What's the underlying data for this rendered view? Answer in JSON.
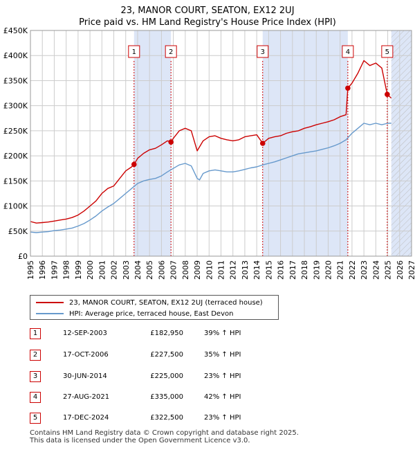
{
  "title_line1": "23, MANOR COURT, SEATON, EX12 2UJ",
  "title_line2": "Price paid vs. HM Land Registry's House Price Index (HPI)",
  "colors": {
    "property": "#cc0000",
    "hpi": "#6699cc",
    "shade": "#dde6f7",
    "grid": "#cccccc"
  },
  "legend": {
    "property_label": "23, MANOR COURT, SEATON, EX12 2UJ (terraced house)",
    "hpi_label": "HPI: Average price, terraced house, East Devon"
  },
  "sales": [
    {
      "num": "1",
      "date": "12-SEP-2003",
      "price": "£182,950",
      "hpi": "39% ↑ HPI"
    },
    {
      "num": "2",
      "date": "17-OCT-2006",
      "price": "£227,500",
      "hpi": "35% ↑ HPI"
    },
    {
      "num": "3",
      "date": "30-JUN-2014",
      "price": "£225,000",
      "hpi": "23% ↑ HPI"
    },
    {
      "num": "4",
      "date": "27-AUG-2021",
      "price": "£335,000",
      "hpi": "42% ↑ HPI"
    },
    {
      "num": "5",
      "date": "17-DEC-2024",
      "price": "£322,500",
      "hpi": "23% ↑ HPI"
    }
  ],
  "footer_line1": "Contains HM Land Registry data © Crown copyright and database right 2025.",
  "footer_line2": "This data is licensed under the Open Government Licence v3.0.",
  "chart_data": {
    "type": "line",
    "title": "Price paid vs. HM Land Registry's House Price Index (HPI)",
    "xlim": [
      1995,
      2027
    ],
    "ylim": [
      0,
      450000
    ],
    "x_ticks": [
      "1995",
      "1996",
      "1997",
      "1998",
      "1999",
      "2000",
      "2001",
      "2002",
      "2003",
      "2004",
      "2005",
      "2006",
      "2007",
      "2008",
      "2009",
      "2010",
      "2011",
      "2012",
      "2013",
      "2014",
      "2015",
      "2016",
      "2017",
      "2018",
      "2019",
      "2020",
      "2021",
      "2022",
      "2023",
      "2024",
      "2025",
      "2026",
      "2027"
    ],
    "y_ticks": [
      {
        "value": 0,
        "label": "£0"
      },
      {
        "value": 50000,
        "label": "£50K"
      },
      {
        "value": 100000,
        "label": "£100K"
      },
      {
        "value": 150000,
        "label": "£150K"
      },
      {
        "value": 200000,
        "label": "£200K"
      },
      {
        "value": 250000,
        "label": "£250K"
      },
      {
        "value": 300000,
        "label": "£300K"
      },
      {
        "value": 350000,
        "label": "£350K"
      },
      {
        "value": 400000,
        "label": "£400K"
      },
      {
        "value": 450000,
        "label": "£450K"
      }
    ],
    "shaded_ranges": [
      [
        2003.7,
        2006.8
      ],
      [
        2014.5,
        2021.65
      ],
      [
        2025.3,
        2027
      ]
    ],
    "hatch_from": 2025.3,
    "sale_markers": [
      {
        "label": "1",
        "x": 2003.7,
        "y": 182950
      },
      {
        "label": "2",
        "x": 2006.8,
        "y": 227500
      },
      {
        "label": "3",
        "x": 2014.5,
        "y": 225000
      },
      {
        "label": "4",
        "x": 2021.65,
        "y": 335000
      },
      {
        "label": "5",
        "x": 2024.96,
        "y": 322500
      }
    ],
    "series": [
      {
        "name": "23, MANOR COURT, SEATON, EX12 2UJ (terraced house)",
        "x": [
          1995.0,
          1995.5,
          1996.0,
          1996.5,
          1997.0,
          1997.5,
          1998.0,
          1998.5,
          1999.0,
          1999.5,
          2000.0,
          2000.5,
          2001.0,
          2001.5,
          2002.0,
          2002.5,
          2003.0,
          2003.5,
          2003.7,
          2004.0,
          2004.5,
          2005.0,
          2005.5,
          2006.0,
          2006.5,
          2006.8,
          2007.0,
          2007.5,
          2008.0,
          2008.5,
          2009.0,
          2009.2,
          2009.5,
          2010.0,
          2010.5,
          2011.0,
          2011.5,
          2012.0,
          2012.5,
          2013.0,
          2013.5,
          2014.0,
          2014.5,
          2015.0,
          2015.5,
          2016.0,
          2016.5,
          2017.0,
          2017.5,
          2018.0,
          2018.5,
          2019.0,
          2019.5,
          2020.0,
          2020.5,
          2021.0,
          2021.5,
          2021.65,
          2022.0,
          2022.5,
          2023.0,
          2023.5,
          2024.0,
          2024.5,
          2024.96,
          2025.3
        ],
        "values": [
          69000,
          66000,
          67000,
          68000,
          70000,
          72000,
          74000,
          77000,
          82000,
          90000,
          100000,
          110000,
          125000,
          135000,
          140000,
          155000,
          170000,
          178000,
          182950,
          195000,
          205000,
          212000,
          215000,
          222000,
          230000,
          227500,
          235000,
          250000,
          255000,
          250000,
          210000,
          218000,
          230000,
          238000,
          240000,
          235000,
          232000,
          230000,
          232000,
          238000,
          240000,
          242000,
          225000,
          235000,
          238000,
          240000,
          245000,
          248000,
          250000,
          255000,
          258000,
          262000,
          265000,
          268000,
          272000,
          278000,
          282000,
          335000,
          345000,
          365000,
          390000,
          380000,
          385000,
          375000,
          322500,
          315000
        ]
      },
      {
        "name": "HPI: Average price, terraced house, East Devon",
        "x": [
          1995.0,
          1995.5,
          1996.0,
          1996.5,
          1997.0,
          1997.5,
          1998.0,
          1998.5,
          1999.0,
          1999.5,
          2000.0,
          2000.5,
          2001.0,
          2001.5,
          2002.0,
          2002.5,
          2003.0,
          2003.5,
          2004.0,
          2004.5,
          2005.0,
          2005.5,
          2006.0,
          2006.5,
          2007.0,
          2007.5,
          2008.0,
          2008.5,
          2009.0,
          2009.2,
          2009.5,
          2010.0,
          2010.5,
          2011.0,
          2011.5,
          2012.0,
          2012.5,
          2013.0,
          2013.5,
          2014.0,
          2014.5,
          2015.0,
          2015.5,
          2016.0,
          2016.5,
          2017.0,
          2017.5,
          2018.0,
          2018.5,
          2019.0,
          2019.5,
          2020.0,
          2020.5,
          2021.0,
          2021.5,
          2022.0,
          2022.5,
          2023.0,
          2023.5,
          2024.0,
          2024.5,
          2025.0,
          2025.3
        ],
        "values": [
          48000,
          47000,
          48000,
          49000,
          51000,
          52000,
          54000,
          56000,
          60000,
          65000,
          72000,
          80000,
          90000,
          98000,
          105000,
          115000,
          125000,
          135000,
          145000,
          150000,
          153000,
          155000,
          160000,
          168000,
          175000,
          182000,
          185000,
          180000,
          155000,
          152000,
          165000,
          170000,
          172000,
          170000,
          168000,
          168000,
          170000,
          173000,
          176000,
          178000,
          182000,
          185000,
          188000,
          192000,
          196000,
          200000,
          204000,
          206000,
          208000,
          210000,
          213000,
          216000,
          220000,
          225000,
          232000,
          245000,
          255000,
          265000,
          262000,
          265000,
          262000,
          265000,
          265000
        ]
      }
    ]
  }
}
